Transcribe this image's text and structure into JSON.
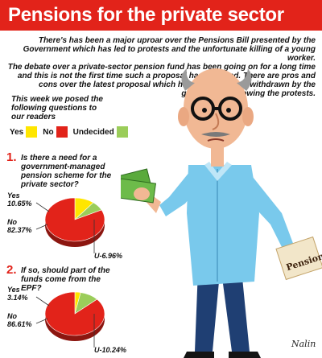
{
  "title": "Pensions for the private sector",
  "intro": {
    "p1": "There's has been a major uproar over the Pensions Bill presented by the Government which has led to protests and the unfortunate killing of a young worker.",
    "p2": "The debate over a private-sector pension fund has been going on for a long time and this is not the first time such a proposal has emerged. There are pros and cons over the latest proposal which has however been withdrawn by the government following the protests."
  },
  "poll_intro": "This week we posed the following questions to our readers",
  "legend": [
    {
      "label": "Yes",
      "color": "#ffe600"
    },
    {
      "label": "No",
      "color": "#e2231a"
    },
    {
      "label": "Undecided",
      "color": "#9bcd5a"
    }
  ],
  "cartoon": {
    "pension_paper_text": "Pension",
    "signature": "Nalin"
  },
  "questions": [
    {
      "number": "1.",
      "text": "Is there a need for a government-managed pension scheme for the private sector?"
    },
    {
      "number": "2.",
      "text": "If so, should part of the funds come from the EPF?"
    }
  ],
  "chart_data": [
    {
      "type": "pie",
      "categories": [
        "Yes",
        "No",
        "Undecided"
      ],
      "values": [
        10.65,
        82.37,
        6.96
      ],
      "labels": {
        "Yes": [
          "Yes",
          "10.65%"
        ],
        "No": [
          "No",
          "82.37%"
        ],
        "Undecided": [
          "U-6.96%"
        ]
      },
      "colors": [
        "#ffe600",
        "#e2231a",
        "#9bcd5a"
      ],
      "legend": "above charts"
    },
    {
      "type": "pie",
      "categories": [
        "Yes",
        "No",
        "Undecided"
      ],
      "values": [
        3.14,
        86.61,
        10.24
      ],
      "labels": {
        "Yes": [
          "Yes",
          "3.14%"
        ],
        "No": [
          "No",
          "86.61%"
        ],
        "Undecided": [
          "U-10.24%"
        ]
      },
      "colors": [
        "#ffe600",
        "#e2231a",
        "#9bcd5a"
      ],
      "legend": "above charts"
    }
  ]
}
